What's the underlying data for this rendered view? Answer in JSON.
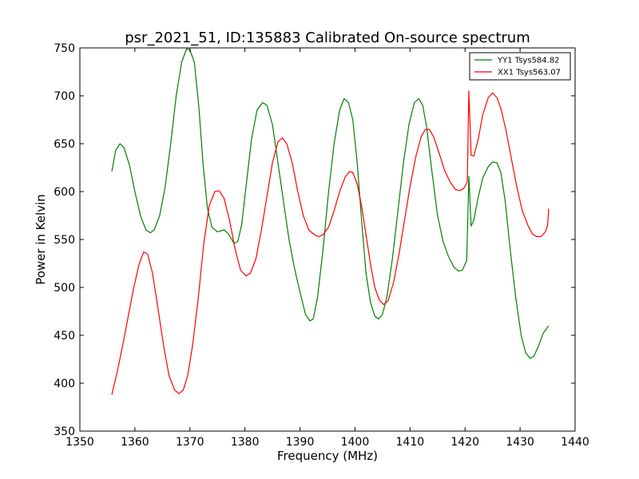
{
  "chart_data": {
    "type": "line",
    "title": "psr_2021_51, ID:135883 Calibrated On-source spectrum",
    "xlabel": "Frequency (MHz)",
    "ylabel": "Power in Kelvin",
    "xlim": [
      1350,
      1440
    ],
    "ylim": [
      350,
      750
    ],
    "xticks": [
      1350,
      1360,
      1370,
      1380,
      1390,
      1400,
      1410,
      1420,
      1430,
      1440
    ],
    "yticks": [
      350,
      400,
      450,
      500,
      550,
      600,
      650,
      700,
      750
    ],
    "grid": false,
    "legend_position": "top-right",
    "series": [
      {
        "name": "YY1 Tsys584.82",
        "color": "#008000",
        "points": [
          [
            1355.8,
            621
          ],
          [
            1356.5,
            643
          ],
          [
            1357.3,
            650
          ],
          [
            1358.0,
            646
          ],
          [
            1359.0,
            628
          ],
          [
            1360.0,
            600
          ],
          [
            1361.0,
            575
          ],
          [
            1362.0,
            560
          ],
          [
            1362.8,
            557
          ],
          [
            1363.5,
            560
          ],
          [
            1364.5,
            575
          ],
          [
            1365.5,
            605
          ],
          [
            1366.5,
            650
          ],
          [
            1367.5,
            700
          ],
          [
            1368.5,
            735
          ],
          [
            1369.4,
            749
          ],
          [
            1370.0,
            748
          ],
          [
            1370.8,
            735
          ],
          [
            1371.6,
            690
          ],
          [
            1372.4,
            628
          ],
          [
            1373.2,
            582
          ],
          [
            1374.0,
            563
          ],
          [
            1375.0,
            558
          ],
          [
            1376.2,
            560
          ],
          [
            1377.0,
            556
          ],
          [
            1378.0,
            546
          ],
          [
            1378.7,
            548
          ],
          [
            1379.4,
            565
          ],
          [
            1380.3,
            610
          ],
          [
            1381.2,
            655
          ],
          [
            1382.2,
            685
          ],
          [
            1383.2,
            693
          ],
          [
            1384.0,
            690
          ],
          [
            1385.0,
            670
          ],
          [
            1386.0,
            630
          ],
          [
            1387.0,
            590
          ],
          [
            1388.0,
            550
          ],
          [
            1389.0,
            520
          ],
          [
            1390.0,
            495
          ],
          [
            1391.0,
            472
          ],
          [
            1391.8,
            465
          ],
          [
            1392.4,
            467
          ],
          [
            1393.2,
            490
          ],
          [
            1394.2,
            540
          ],
          [
            1395.2,
            600
          ],
          [
            1396.2,
            650
          ],
          [
            1397.2,
            685
          ],
          [
            1398.0,
            697
          ],
          [
            1398.8,
            693
          ],
          [
            1399.6,
            675
          ],
          [
            1400.4,
            630
          ],
          [
            1401.2,
            570
          ],
          [
            1402.0,
            515
          ],
          [
            1402.8,
            485
          ],
          [
            1403.6,
            470
          ],
          [
            1404.3,
            467
          ],
          [
            1405.0,
            472
          ],
          [
            1405.8,
            490
          ],
          [
            1406.8,
            530
          ],
          [
            1407.8,
            580
          ],
          [
            1408.8,
            630
          ],
          [
            1409.8,
            670
          ],
          [
            1410.8,
            693
          ],
          [
            1411.6,
            697
          ],
          [
            1412.3,
            690
          ],
          [
            1413.0,
            668
          ],
          [
            1414.0,
            620
          ],
          [
            1415.0,
            575
          ],
          [
            1416.0,
            548
          ],
          [
            1417.0,
            532
          ],
          [
            1418.0,
            521
          ],
          [
            1418.8,
            517
          ],
          [
            1419.5,
            518
          ],
          [
            1420.3,
            528
          ],
          [
            1420.7,
            616
          ],
          [
            1421.1,
            564
          ],
          [
            1421.6,
            570
          ],
          [
            1422.3,
            592
          ],
          [
            1423.2,
            614
          ],
          [
            1424.2,
            626
          ],
          [
            1425.0,
            631
          ],
          [
            1425.8,
            630
          ],
          [
            1426.5,
            620
          ],
          [
            1427.3,
            590
          ],
          [
            1428.2,
            540
          ],
          [
            1429.2,
            490
          ],
          [
            1430.2,
            450
          ],
          [
            1431.0,
            432
          ],
          [
            1431.8,
            426
          ],
          [
            1432.5,
            428
          ],
          [
            1433.3,
            438
          ],
          [
            1434.2,
            452
          ],
          [
            1435.2,
            460
          ]
        ]
      },
      {
        "name": "XX1 Tsys563.07",
        "color": "#ff0000",
        "points": [
          [
            1355.8,
            388
          ],
          [
            1356.8,
            412
          ],
          [
            1357.8,
            440
          ],
          [
            1358.8,
            470
          ],
          [
            1359.8,
            500
          ],
          [
            1360.8,
            525
          ],
          [
            1361.6,
            537
          ],
          [
            1362.3,
            535
          ],
          [
            1363.2,
            515
          ],
          [
            1364.2,
            478
          ],
          [
            1365.2,
            440
          ],
          [
            1366.2,
            408
          ],
          [
            1367.2,
            393
          ],
          [
            1368.0,
            389
          ],
          [
            1368.8,
            393
          ],
          [
            1369.6,
            408
          ],
          [
            1370.5,
            440
          ],
          [
            1371.5,
            488
          ],
          [
            1372.5,
            545
          ],
          [
            1373.5,
            585
          ],
          [
            1374.5,
            600
          ],
          [
            1375.3,
            601
          ],
          [
            1376.2,
            593
          ],
          [
            1377.2,
            570
          ],
          [
            1378.2,
            540
          ],
          [
            1379.2,
            518
          ],
          [
            1380.2,
            512
          ],
          [
            1381.0,
            515
          ],
          [
            1382.0,
            530
          ],
          [
            1383.0,
            560
          ],
          [
            1384.0,
            595
          ],
          [
            1385.0,
            630
          ],
          [
            1386.0,
            652
          ],
          [
            1386.8,
            656
          ],
          [
            1387.6,
            650
          ],
          [
            1388.6,
            630
          ],
          [
            1389.6,
            600
          ],
          [
            1390.6,
            575
          ],
          [
            1391.6,
            560
          ],
          [
            1392.6,
            555
          ],
          [
            1393.4,
            553
          ],
          [
            1394.2,
            555
          ],
          [
            1395.2,
            563
          ],
          [
            1396.2,
            580
          ],
          [
            1397.2,
            600
          ],
          [
            1398.2,
            615
          ],
          [
            1399.0,
            621
          ],
          [
            1399.6,
            620
          ],
          [
            1400.4,
            608
          ],
          [
            1401.2,
            585
          ],
          [
            1402.0,
            555
          ],
          [
            1402.8,
            525
          ],
          [
            1403.6,
            500
          ],
          [
            1404.4,
            487
          ],
          [
            1405.2,
            482
          ],
          [
            1406.0,
            486
          ],
          [
            1407.0,
            505
          ],
          [
            1408.0,
            535
          ],
          [
            1409.0,
            570
          ],
          [
            1410.0,
            605
          ],
          [
            1411.0,
            635
          ],
          [
            1412.0,
            657
          ],
          [
            1412.8,
            665
          ],
          [
            1413.5,
            665
          ],
          [
            1414.3,
            657
          ],
          [
            1415.3,
            640
          ],
          [
            1416.3,
            622
          ],
          [
            1417.3,
            610
          ],
          [
            1418.3,
            602
          ],
          [
            1419.0,
            601
          ],
          [
            1419.7,
            603
          ],
          [
            1420.4,
            610
          ],
          [
            1420.7,
            705
          ],
          [
            1421.1,
            638
          ],
          [
            1421.6,
            637
          ],
          [
            1422.4,
            655
          ],
          [
            1423.2,
            680
          ],
          [
            1424.2,
            698
          ],
          [
            1425.0,
            703
          ],
          [
            1425.8,
            698
          ],
          [
            1426.6,
            685
          ],
          [
            1427.4,
            665
          ],
          [
            1428.4,
            635
          ],
          [
            1429.4,
            605
          ],
          [
            1430.4,
            580
          ],
          [
            1431.4,
            565
          ],
          [
            1432.2,
            556
          ],
          [
            1433.0,
            553
          ],
          [
            1433.8,
            553
          ],
          [
            1434.6,
            558
          ],
          [
            1435.0,
            565
          ],
          [
            1435.2,
            582
          ]
        ]
      }
    ]
  }
}
